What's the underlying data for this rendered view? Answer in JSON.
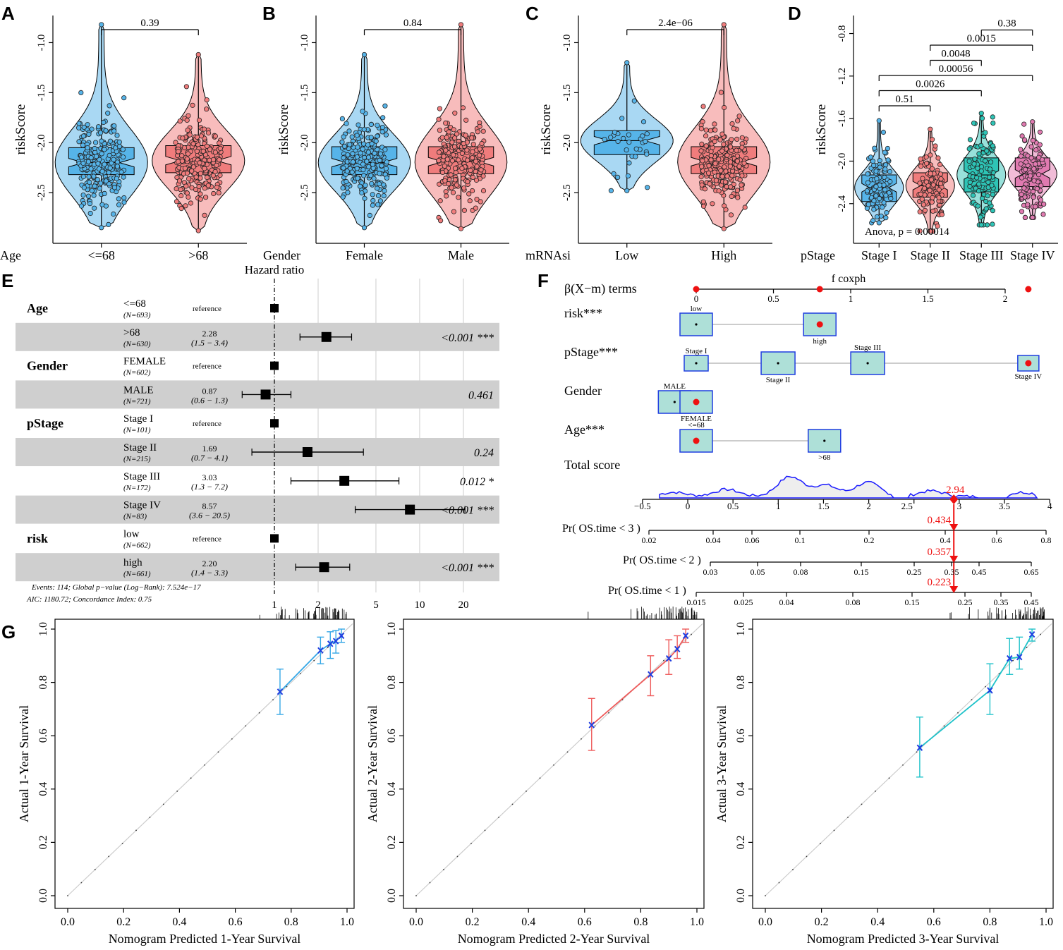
{
  "panels": {
    "A": "A",
    "B": "B",
    "C": "C",
    "D": "D",
    "E": "E",
    "F": "F",
    "G": "G"
  },
  "colors": {
    "blue": "#56b4e9",
    "blue_fill": "#a9d8f3",
    "red": "#f07c7c",
    "red_fill": "#f8bcbc",
    "teal": "#2ec4b6",
    "teal_fill": "#98e1db",
    "pink": "#e07ab0",
    "pink_fill": "#f1bcd7",
    "nomo_box": "#aee0d8",
    "nomo_border": "#1f3de0",
    "calib_blue": "#35a7e6",
    "calib_red": "#ee5a5a",
    "calib_teal": "#1ec2c9",
    "grey_band": "#cfcfcf"
  },
  "chart_data": [
    {
      "id": "A",
      "type": "violin-box",
      "ylabel": "riskScore",
      "group_label": "Age",
      "categories": [
        "<=68",
        ">68"
      ],
      "yticks": [
        -2.5,
        -2.0,
        -1.5,
        -1.0
      ],
      "ytick_labels": [
        "-2.5",
        "-2.0",
        "-1.5",
        "-1.0"
      ],
      "ylim": [
        -2.95,
        -0.75
      ],
      "stats": [
        {
          "min": -2.85,
          "q1": -2.32,
          "median": -2.2,
          "q3": -2.05,
          "max": -0.82,
          "color": "blue"
        },
        {
          "min": -2.88,
          "q1": -2.3,
          "median": -2.18,
          "q3": -2.03,
          "max": -1.12,
          "color": "red"
        }
      ],
      "comparisons": [
        {
          "from": 0,
          "to": 1,
          "label": "0.39"
        }
      ]
    },
    {
      "id": "B",
      "type": "violin-box",
      "ylabel": "riskScore",
      "group_label": "Gender",
      "categories": [
        "Female",
        "Male"
      ],
      "yticks": [
        -2.5,
        -2.0,
        -1.5,
        -1.0
      ],
      "ytick_labels": [
        "-2.5",
        "-2.0",
        "-1.5",
        "-1.0"
      ],
      "ylim": [
        -2.95,
        -0.75
      ],
      "stats": [
        {
          "min": -2.85,
          "q1": -2.32,
          "median": -2.2,
          "q3": -2.04,
          "max": -1.12,
          "color": "blue"
        },
        {
          "min": -2.86,
          "q1": -2.31,
          "median": -2.19,
          "q3": -2.04,
          "max": -0.82,
          "color": "red"
        }
      ],
      "comparisons": [
        {
          "from": 0,
          "to": 1,
          "label": "0.84"
        }
      ]
    },
    {
      "id": "C",
      "type": "violin-box",
      "ylabel": "riskScore",
      "group_label": "mRNAsi",
      "categories": [
        "Low",
        "High"
      ],
      "yticks": [
        -2.5,
        -2.0,
        -1.5,
        -1.0
      ],
      "ytick_labels": [
        "-2.5",
        "-2.0",
        "-1.5",
        "-1.0"
      ],
      "ylim": [
        -2.95,
        -0.75
      ],
      "stats": [
        {
          "min": -2.48,
          "q1": -2.12,
          "median": -1.98,
          "q3": -1.88,
          "max": -1.2,
          "color": "blue"
        },
        {
          "min": -2.86,
          "q1": -2.31,
          "median": -2.19,
          "q3": -2.04,
          "max": -0.82,
          "color": "red"
        }
      ],
      "comparisons": [
        {
          "from": 0,
          "to": 1,
          "label": "2.4e−06"
        }
      ]
    },
    {
      "id": "D",
      "type": "violin-box",
      "ylabel": "riskScore",
      "group_label": "pStage",
      "categories": [
        "Stage I",
        "Stage II",
        "Stage III",
        "Stage IV"
      ],
      "yticks": [
        -2.4,
        -2.0,
        -1.6,
        -1.2,
        -0.8
      ],
      "ytick_labels": [
        "-2.4",
        "-2.0",
        "-1.6",
        "-1.2",
        "-0.8"
      ],
      "ylim": [
        -2.72,
        -0.75
      ],
      "stats": [
        {
          "min": -2.58,
          "q1": -2.38,
          "median": -2.25,
          "q3": -2.13,
          "max": -1.62,
          "color": "blue"
        },
        {
          "min": -2.66,
          "q1": -2.34,
          "median": -2.23,
          "q3": -2.11,
          "max": -1.7,
          "color": "red"
        },
        {
          "min": -2.6,
          "q1": -2.29,
          "median": -2.13,
          "q3": -1.97,
          "max": -1.55,
          "color": "teal"
        },
        {
          "min": -2.53,
          "q1": -2.24,
          "median": -2.12,
          "q3": -1.97,
          "max": -1.63,
          "color": "pink"
        }
      ],
      "comparisons": [
        {
          "from": 0,
          "to": 1,
          "label": "0.51",
          "level": 0
        },
        {
          "from": 0,
          "to": 2,
          "label": "0.0026",
          "level": 1
        },
        {
          "from": 0,
          "to": 3,
          "label": "0.00056",
          "level": 2
        },
        {
          "from": 1,
          "to": 2,
          "label": "0.0048",
          "level": 3
        },
        {
          "from": 1,
          "to": 3,
          "label": "0.0015",
          "level": 4
        },
        {
          "from": 2,
          "to": 3,
          "label": "0.38",
          "level": 5
        }
      ],
      "annotation": "Anova, p = 0.00014"
    },
    {
      "id": "E",
      "type": "forest",
      "title": "Hazard ratio",
      "xticks": [
        1,
        2,
        5,
        10,
        20
      ],
      "xtick_labels": [
        "1",
        "2",
        "5",
        "10",
        "20"
      ],
      "groups": [
        {
          "name": "Age",
          "rows": [
            {
              "level": "<=68",
              "n": "(N=693)",
              "hr": null,
              "ci": "reference",
              "p": ""
            },
            {
              "level": ">68",
              "n": "(N=630)",
              "hr": 2.28,
              "ci_text": "(1.5 − 3.4)",
              "hr_text": "2.28",
              "lo": 1.5,
              "hi": 3.4,
              "p": "<0.001 ***"
            }
          ]
        },
        {
          "name": "Gender",
          "rows": [
            {
              "level": "FEMALE",
              "n": "(N=602)",
              "hr": null,
              "ci": "reference",
              "p": ""
            },
            {
              "level": "MALE",
              "n": "(N=721)",
              "hr": 0.87,
              "ci_text": "(0.6 − 1.3)",
              "hr_text": "0.87",
              "lo": 0.6,
              "hi": 1.3,
              "p": "0.461"
            }
          ]
        },
        {
          "name": "pStage",
          "rows": [
            {
              "level": "Stage I",
              "n": "(N=101)",
              "hr": null,
              "ci": "reference",
              "p": ""
            },
            {
              "level": "Stage II",
              "n": "(N=215)",
              "hr": 1.69,
              "ci_text": "(0.7 − 4.1)",
              "hr_text": "1.69",
              "lo": 0.7,
              "hi": 4.1,
              "p": "0.24"
            },
            {
              "level": "Stage III",
              "n": "(N=172)",
              "hr": 3.03,
              "ci_text": "(1.3 − 7.2)",
              "hr_text": "3.03",
              "lo": 1.3,
              "hi": 7.2,
              "p": "0.012 *"
            },
            {
              "level": "Stage IV",
              "n": "(N=83)",
              "hr": 8.57,
              "ci_text": "(3.6 − 20.5)",
              "hr_text": "8.57",
              "lo": 3.6,
              "hi": 20.5,
              "p": "<0.001 ***"
            }
          ]
        },
        {
          "name": "risk",
          "rows": [
            {
              "level": "low",
              "n": "(N=662)",
              "hr": null,
              "ci": "reference",
              "p": ""
            },
            {
              "level": "high",
              "n": "(N=661)",
              "hr": 2.2,
              "ci_text": "(1.4 − 3.3)",
              "hr_text": "2.20",
              "lo": 1.4,
              "hi": 3.3,
              "p": "<0.001 ***"
            }
          ]
        }
      ],
      "footer1": "Events: 114; Global p−value (Log−Rank): 7.524e−17",
      "footer2": "AIC: 1180.72; Concordance Index: 0.75"
    },
    {
      "id": "F",
      "type": "nomogram",
      "title": "f coxph",
      "beta_label": "β(X−m) terms",
      "beta_axis": {
        "min": 0,
        "max": 2,
        "ticks": [
          0,
          0.5,
          1,
          1.5,
          2
        ],
        "tick_labels": [
          "0",
          "0.5",
          "1",
          "1.5",
          "2"
        ]
      },
      "beta_points": [
        0,
        0.8,
        2.15
      ],
      "terms": [
        {
          "label": "risk***",
          "levels": [
            {
              "name": "low",
              "beta": 0,
              "pos": "above"
            },
            {
              "name": "high",
              "beta": 0.8,
              "pos": "below",
              "selected": true
            }
          ]
        },
        {
          "label": "pStage***",
          "levels": [
            {
              "name": "Stage I",
              "beta": 0,
              "pos": "above"
            },
            {
              "name": "Stage II",
              "beta": 0.53,
              "pos": "below"
            },
            {
              "name": "Stage III",
              "beta": 1.11,
              "pos": "above"
            },
            {
              "name": "Stage IV",
              "beta": 2.15,
              "pos": "below",
              "selected": true
            }
          ]
        },
        {
          "label": "Gender",
          "levels": [
            {
              "name": "MALE",
              "beta": -0.14,
              "pos": "above"
            },
            {
              "name": "FEMALE",
              "beta": 0,
              "pos": "below",
              "selected": true
            }
          ]
        },
        {
          "label": "Age***",
          "levels": [
            {
              "name": "<=68",
              "beta": 0,
              "pos": "above",
              "selected": true
            },
            {
              "name": ">68",
              "beta": 0.83,
              "pos": "below"
            }
          ]
        }
      ],
      "total_label": "Total score",
      "total_axis": {
        "ticks": [
          -0.5,
          0,
          0.5,
          1,
          1.5,
          2,
          2.5,
          3,
          3.5,
          4
        ],
        "tick_labels": [
          "−0.5",
          "0",
          "0.5",
          "1",
          "1.5",
          "2",
          "2.5",
          "3",
          "3.5",
          "4"
        ]
      },
      "total_value": 2.94,
      "total_value_label": "2.94",
      "prob_scales": [
        {
          "label": "Pr( OS.time < 3 )",
          "ticks": [
            "0.02",
            "0.04",
            "0.06",
            "0.1",
            "0.2",
            "0.4",
            "0.6",
            "0.8"
          ],
          "values": [
            0.02,
            0.04,
            0.06,
            0.1,
            0.2,
            0.4,
            0.6,
            0.8
          ],
          "value": 0.434,
          "value_label": "0.434"
        },
        {
          "label": "Pr( OS.time < 2 )",
          "ticks": [
            "0.03",
            "0.05",
            "0.08",
            "0.15",
            "0.25",
            "0.35",
            "0.45",
            "0.65"
          ],
          "values": [
            0.03,
            0.05,
            0.08,
            0.15,
            0.25,
            0.35,
            0.45,
            0.65
          ],
          "value": 0.357,
          "value_label": "0.357"
        },
        {
          "label": "Pr( OS.time < 1 )",
          "ticks": [
            "0.015",
            "0.025",
            "0.04",
            "0.08",
            "0.15",
            "0.25",
            "0.35",
            "0.45"
          ],
          "values": [
            0.015,
            0.025,
            0.04,
            0.08,
            0.15,
            0.25,
            0.35,
            0.45
          ],
          "value": 0.223,
          "value_label": "0.223"
        }
      ]
    },
    {
      "id": "G1",
      "type": "calibration",
      "xlabel": "Nomogram Predicted 1-Year Survival",
      "ylabel": "Actual 1-Year Survival",
      "xticks": [
        "0.0",
        "0.2",
        "0.4",
        "0.6",
        "0.8",
        "1.0"
      ],
      "yticks": [
        "0.0",
        "0.2",
        "0.4",
        "0.6",
        "0.8",
        "1.0"
      ],
      "color": "calib_blue",
      "points": [
        {
          "x": 0.76,
          "y": 0.765,
          "lo": 0.68,
          "hi": 0.85
        },
        {
          "x": 0.905,
          "y": 0.92,
          "lo": 0.87,
          "hi": 0.97
        },
        {
          "x": 0.94,
          "y": 0.945,
          "lo": 0.89,
          "hi": 0.99
        },
        {
          "x": 0.96,
          "y": 0.955,
          "lo": 0.91,
          "hi": 0.995
        },
        {
          "x": 0.98,
          "y": 0.975,
          "lo": 0.95,
          "hi": 1.0
        }
      ]
    },
    {
      "id": "G2",
      "type": "calibration",
      "xlabel": "Nomogram Predicted 2-Year Survival",
      "ylabel": "Actual 2-Year Survival",
      "xticks": [
        "0.0",
        "0.2",
        "0.4",
        "0.6",
        "0.8",
        "1.0"
      ],
      "yticks": [
        "0.0",
        "0.2",
        "0.4",
        "0.6",
        "0.8",
        "1.0"
      ],
      "color": "calib_red",
      "points": [
        {
          "x": 0.625,
          "y": 0.64,
          "lo": 0.545,
          "hi": 0.74
        },
        {
          "x": 0.835,
          "y": 0.83,
          "lo": 0.75,
          "hi": 0.9
        },
        {
          "x": 0.9,
          "y": 0.89,
          "lo": 0.83,
          "hi": 0.96
        },
        {
          "x": 0.93,
          "y": 0.925,
          "lo": 0.89,
          "hi": 0.975
        },
        {
          "x": 0.96,
          "y": 0.975,
          "lo": 0.95,
          "hi": 1.0
        }
      ]
    },
    {
      "id": "G3",
      "type": "calibration",
      "xlabel": "Nomogram Predicted 3-Year Survival",
      "ylabel": "Actual 3-Year Survival",
      "xticks": [
        "0.0",
        "0.2",
        "0.4",
        "0.6",
        "0.8",
        "1.0"
      ],
      "yticks": [
        "0.0",
        "0.2",
        "0.4",
        "0.6",
        "0.8",
        "1.0"
      ],
      "color": "calib_teal",
      "points": [
        {
          "x": 0.55,
          "y": 0.555,
          "lo": 0.445,
          "hi": 0.67
        },
        {
          "x": 0.8,
          "y": 0.77,
          "lo": 0.68,
          "hi": 0.87
        },
        {
          "x": 0.87,
          "y": 0.89,
          "lo": 0.83,
          "hi": 0.965
        },
        {
          "x": 0.905,
          "y": 0.895,
          "lo": 0.85,
          "hi": 0.97
        },
        {
          "x": 0.95,
          "y": 0.98,
          "lo": 0.955,
          "hi": 1.0
        }
      ]
    }
  ]
}
